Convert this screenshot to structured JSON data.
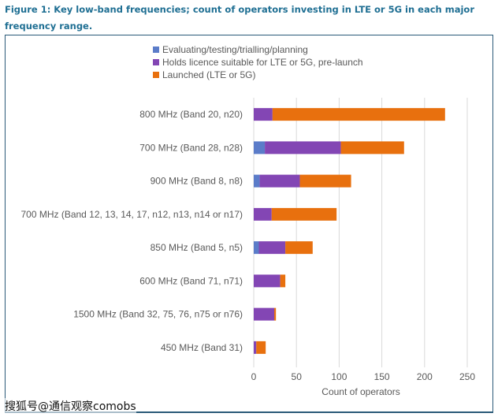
{
  "figure": {
    "title": "Figure 1: Key low-band frequencies; count of operators investing in LTE or 5G in each major frequency range."
  },
  "watermark": "搜狐号@通信观察comobs",
  "chart_data": {
    "type": "bar",
    "orientation": "horizontal",
    "stacked": true,
    "title": "",
    "xlabel": "Count of operators",
    "ylabel": "",
    "xlim": [
      0,
      250
    ],
    "xticks": [
      0,
      50,
      100,
      150,
      200,
      250
    ],
    "grid": true,
    "legend_position": "top",
    "categories": [
      "800 MHz (Band 20, n20)",
      "700 MHz (Band 28, n28)",
      "900 MHz (Band 8, n8)",
      "700 MHz (Band 12, 13, 14, 17, n12, n13, n14 or n17)",
      "850 MHz (Band 5, n5)",
      "600 MHz (Band 71, n71)",
      "1500 MHz (Band 32, 75, 76, n75 or n76)",
      "450 MHz (Band 31)"
    ],
    "series": [
      {
        "name": "Evaluating/testing/trialling/planning",
        "color": "#5b7cc9",
        "values": [
          0,
          13,
          7,
          0,
          6,
          0,
          0,
          0
        ]
      },
      {
        "name": "Holds licence suitable for LTE or 5G, pre-launch",
        "color": "#8346b4",
        "values": [
          22,
          89,
          47,
          21,
          31,
          31,
          24,
          3
        ]
      },
      {
        "name": "Launched (LTE or 5G)",
        "color": "#e8700e",
        "values": [
          202,
          74,
          60,
          76,
          32,
          6,
          2,
          11
        ]
      }
    ]
  }
}
